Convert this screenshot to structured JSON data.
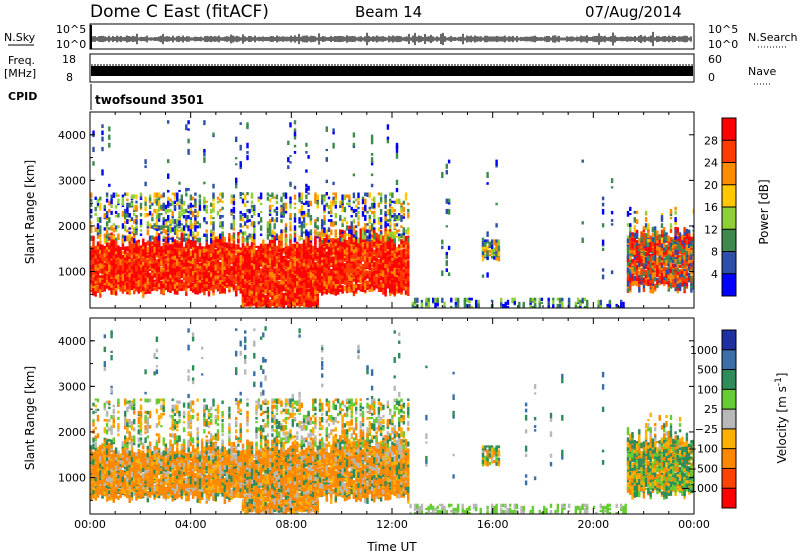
{
  "header": {
    "station": "Dome C East (fitACF)",
    "beam": "Beam 14",
    "date": "07/Aug/2014"
  },
  "strip_panels": {
    "nsky": {
      "left_label": "N.Sky",
      "tick_top": "10^5",
      "tick_bottom": "10^0",
      "right_label": "N.Search",
      "right_tick_top": "10^5",
      "right_tick_bottom": "10^0"
    },
    "freq": {
      "left_label_1": "Freq.",
      "left_label_2": "[MHz]",
      "tick_top": "18",
      "tick_bottom": "8",
      "right_label": "Nave",
      "right_tick_top": "60",
      "right_tick_bottom": "0"
    },
    "cpid": {
      "left_label": "CPID",
      "program": "twofsound 3501"
    }
  },
  "chart_data": [
    {
      "type": "heatmap",
      "name": "power",
      "ylabel": "Slant Range [km]",
      "ylim": [
        200,
        4500
      ],
      "yticks": [
        "4000",
        "3000",
        "2000",
        "1000"
      ],
      "colorbar": {
        "label": "Power [dB]",
        "ticks": [
          "28",
          "24",
          "20",
          "16",
          "12",
          "8",
          "4"
        ],
        "colors": [
          "#ff0000",
          "#ff3c00",
          "#ff8c00",
          "#ffc800",
          "#8fcf3a",
          "#3e8a4e",
          "#2d4fa8",
          "#0000ff"
        ]
      }
    },
    {
      "type": "heatmap",
      "name": "velocity",
      "ylabel": "Slant Range [km]",
      "ylim": [
        200,
        4500
      ],
      "yticks": [
        "4000",
        "3000",
        "2000",
        "1000"
      ],
      "xlabel": "Time UT",
      "xticks": [
        "00:00",
        "04:00",
        "08:00",
        "12:00",
        "16:00",
        "20:00",
        "00:00"
      ],
      "colorbar": {
        "label": "Velocity [m s^-1]",
        "ticks": [
          "1000",
          "500",
          "100",
          "25",
          "−25",
          "−100",
          "−500",
          "−1000"
        ],
        "colors": [
          "#2030a0",
          "#3a70a8",
          "#2e8c5a",
          "#66cc33",
          "#b8b8b8",
          "#ffb000",
          "#ff8800",
          "#ff4400",
          "#ff0000"
        ]
      }
    }
  ]
}
